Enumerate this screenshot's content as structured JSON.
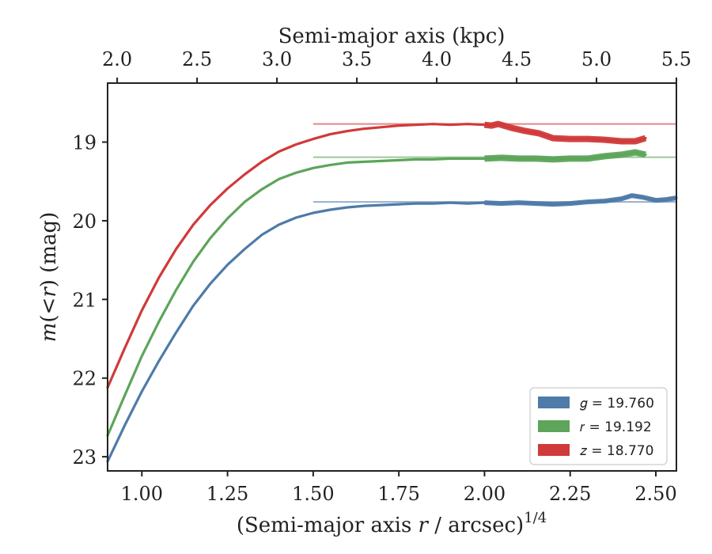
{
  "chart_data": {
    "type": "line",
    "xlabel_bottom": "(Semi-major axis r / arcsec)^1/4",
    "xlabel_top": "Semi-major axis (kpc)",
    "ylabel": "m(<r) (mag)",
    "xlim": [
      0.9,
      2.56
    ],
    "ylim": [
      23.18,
      18.25
    ],
    "y_inverted": true,
    "x_ticks": [
      "1.00",
      "1.25",
      "1.50",
      "1.75",
      "2.00",
      "2.25",
      "2.50"
    ],
    "x_tick_values": [
      1.0,
      1.25,
      1.5,
      1.75,
      2.0,
      2.25,
      2.5
    ],
    "top_ticks": [
      "2.0",
      "2.5",
      "3.0",
      "3.5",
      "4.0",
      "4.5",
      "5.0",
      "5.5"
    ],
    "top_tick_values": [
      2.0,
      2.5,
      3.0,
      3.5,
      4.0,
      4.5,
      5.0,
      5.5
    ],
    "top_xlim": [
      1.94,
      5.5
    ],
    "y_ticks": [
      "19",
      "20",
      "21",
      "22",
      "23"
    ],
    "y_tick_values": [
      19,
      20,
      21,
      22,
      23
    ],
    "legend_position": "lower-right",
    "series": [
      {
        "name": "g",
        "label_value": "19.760",
        "color": "#4e7ba8",
        "asymptote": 19.76,
        "x": [
          0.9,
          0.95,
          1.0,
          1.05,
          1.1,
          1.15,
          1.2,
          1.25,
          1.3,
          1.35,
          1.4,
          1.45,
          1.5,
          1.55,
          1.6,
          1.65,
          1.7,
          1.75,
          1.8,
          1.85,
          1.9,
          1.95,
          2.0,
          2.05,
          2.1,
          2.15,
          2.2,
          2.25,
          2.3,
          2.35,
          2.4,
          2.43,
          2.46,
          2.5,
          2.53,
          2.56
        ],
        "y": [
          23.06,
          22.6,
          22.17,
          21.78,
          21.42,
          21.08,
          20.8,
          20.56,
          20.36,
          20.18,
          20.05,
          19.96,
          19.9,
          19.86,
          19.83,
          19.81,
          19.8,
          19.79,
          19.78,
          19.78,
          19.77,
          19.78,
          19.77,
          19.78,
          19.77,
          19.78,
          19.79,
          19.78,
          19.76,
          19.75,
          19.72,
          19.68,
          19.7,
          19.74,
          19.73,
          19.71
        ]
      },
      {
        "name": "r",
        "label_value": "19.192",
        "color": "#5ca55a",
        "asymptote": 19.192,
        "x": [
          0.9,
          0.95,
          1.0,
          1.05,
          1.1,
          1.15,
          1.2,
          1.25,
          1.3,
          1.35,
          1.4,
          1.45,
          1.5,
          1.55,
          1.6,
          1.65,
          1.7,
          1.75,
          1.8,
          1.85,
          1.9,
          1.95,
          2.0,
          2.05,
          2.1,
          2.15,
          2.2,
          2.25,
          2.3,
          2.35,
          2.4,
          2.44,
          2.47
        ],
        "y": [
          22.73,
          22.22,
          21.72,
          21.28,
          20.88,
          20.52,
          20.22,
          19.97,
          19.76,
          19.6,
          19.47,
          19.39,
          19.33,
          19.29,
          19.26,
          19.25,
          19.24,
          19.23,
          19.22,
          19.22,
          19.21,
          19.21,
          19.21,
          19.2,
          19.21,
          19.21,
          19.22,
          19.21,
          19.21,
          19.18,
          19.16,
          19.13,
          19.16
        ]
      },
      {
        "name": "z",
        "label_value": "18.770",
        "color": "#d03a3a",
        "asymptote": 18.77,
        "x": [
          0.9,
          0.95,
          1.0,
          1.05,
          1.1,
          1.15,
          1.2,
          1.25,
          1.3,
          1.35,
          1.4,
          1.45,
          1.5,
          1.55,
          1.6,
          1.65,
          1.7,
          1.75,
          1.8,
          1.85,
          1.9,
          1.95,
          2.0,
          2.02,
          2.04,
          2.08,
          2.12,
          2.16,
          2.2,
          2.25,
          2.3,
          2.35,
          2.4,
          2.44,
          2.47
        ],
        "y": [
          22.12,
          21.62,
          21.14,
          20.72,
          20.36,
          20.05,
          19.8,
          19.59,
          19.41,
          19.25,
          19.12,
          19.03,
          18.96,
          18.9,
          18.86,
          18.83,
          18.81,
          18.79,
          18.78,
          18.77,
          18.78,
          18.77,
          18.78,
          18.79,
          18.77,
          18.82,
          18.86,
          18.89,
          18.95,
          18.96,
          18.96,
          18.97,
          18.99,
          18.99,
          18.95
        ]
      }
    ]
  },
  "legend": {
    "g": "g = 19.760",
    "r": "r = 19.192",
    "z": "z = 18.770"
  }
}
